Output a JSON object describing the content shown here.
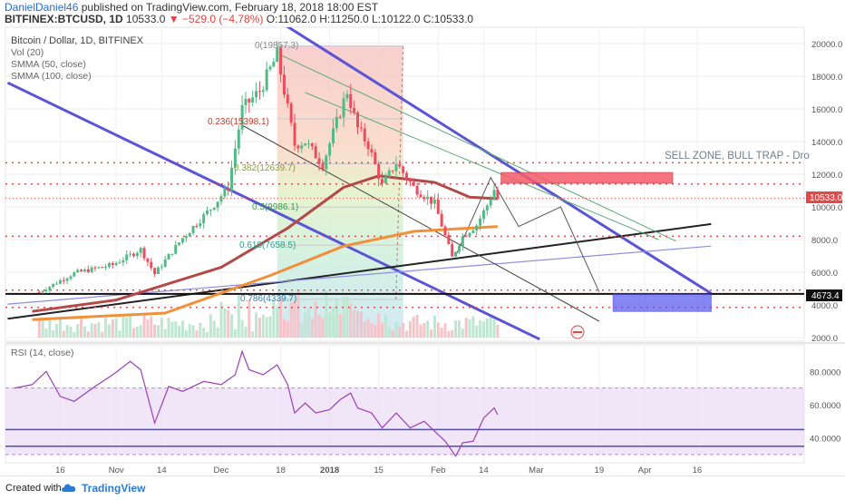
{
  "header": {
    "author": "DanielDaniel46",
    "published": "published on TradingView.com, February 18, 2018 18:00 EST",
    "symbol": "BITFINEX:BTCUSD, 1D",
    "last": "10533.0",
    "change": "▼ −529.0 (−4.78%)",
    "ohlc": "O:11062.0 H:11250.0 L:10122.0 C:10533.0"
  },
  "legend": {
    "title": "Bitcoin / Dollar, 1D, BITFINEX",
    "vol": "Vol (20)",
    "smma50": "SMMA (50, close)",
    "smma100": "SMMA (100, close)"
  },
  "rsi_label": "RSI (14, close)",
  "sell_zone_text": "SELL ZONE, BULL TRAP - Dro",
  "price_tags": {
    "last": "10533.0",
    "support": "4673.4"
  },
  "fib_labels": [
    "0(19857.3)",
    "0.236(15398.1)",
    "0.382(12639.7)",
    "0.5(9986.1)",
    "0.618(7658.5)",
    "0.786(4339.7)"
  ],
  "footer": {
    "created": "Created with",
    "brand": "TradingView"
  },
  "colors": {
    "up": "#53b987",
    "down": "#eb4d5c",
    "smma50": "#b34a4a",
    "smma100": "#f0913a",
    "channel": "#5b55d6",
    "rsi": "#9a3fb8",
    "rsi_band": "#eadcf5",
    "sell_zone": "#f45b69",
    "support": "#5555ee"
  },
  "chart_data": [
    {
      "type": "candlestick",
      "title": "Bitcoin / Dollar, 1D, BITFINEX",
      "y_axis": {
        "ticks": [
          2000,
          4000,
          6000,
          8000,
          10000,
          12000,
          14000,
          16000,
          18000,
          20000
        ],
        "range": [
          2000,
          20800
        ]
      },
      "x_axis": {
        "ticks": [
          "16",
          "Nov",
          "14",
          "Dec",
          "18",
          "2018",
          "15",
          "Feb",
          "14",
          "Mar",
          "19",
          "Apr",
          "16"
        ]
      },
      "close_anchors": [
        [
          "2017-10-10",
          4780
        ],
        [
          "2017-10-20",
          5950
        ],
        [
          "2017-10-31",
          6450
        ],
        [
          "2017-11-08",
          7400
        ],
        [
          "2017-11-12",
          5900
        ],
        [
          "2017-11-20",
          8100
        ],
        [
          "2017-11-28",
          9900
        ],
        [
          "2017-12-03",
          11200
        ],
        [
          "2017-12-07",
          16000
        ],
        [
          "2017-12-12",
          17100
        ],
        [
          "2017-12-17",
          19300
        ],
        [
          "2017-12-22",
          13800
        ],
        [
          "2017-12-25",
          14000
        ],
        [
          "2017-12-30",
          12600
        ],
        [
          "2018-01-06",
          17100
        ],
        [
          "2018-01-09",
          14800
        ],
        [
          "2018-01-12",
          13800
        ],
        [
          "2018-01-16",
          11300
        ],
        [
          "2018-01-20",
          12700
        ],
        [
          "2018-01-25",
          11200
        ],
        [
          "2018-01-31",
          10200
        ],
        [
          "2018-02-05",
          6900
        ],
        [
          "2018-02-08",
          8200
        ],
        [
          "2018-02-12",
          8900
        ],
        [
          "2018-02-15",
          10100
        ],
        [
          "2018-02-17",
          11062
        ],
        [
          "2018-02-18",
          10533
        ]
      ],
      "series": [
        {
          "name": "SMMA (50, close)",
          "points": [
            [
              "2017-10-08",
              3600
            ],
            [
              "2017-11-01",
              4300
            ],
            [
              "2017-12-01",
              6300
            ],
            [
              "2017-12-20",
              8700
            ],
            [
              "2018-01-05",
              11200
            ],
            [
              "2018-01-15",
              11900
            ],
            [
              "2018-01-31",
              11500
            ],
            [
              "2018-02-10",
              10600
            ],
            [
              "2018-02-18",
              10500
            ]
          ]
        },
        {
          "name": "SMMA (100, close)",
          "points": [
            [
              "2017-10-08",
              3100
            ],
            [
              "2017-11-15",
              3500
            ],
            [
              "2017-12-15",
              5800
            ],
            [
              "2018-01-05",
              7600
            ],
            [
              "2018-01-25",
              8500
            ],
            [
              "2018-02-18",
              8800
            ]
          ]
        }
      ],
      "annotations": {
        "fibonacci": [
          [
            0,
            19857.3
          ],
          [
            0.236,
            15398.1
          ],
          [
            0.382,
            12639.7
          ],
          [
            0.5,
            9986.1
          ],
          [
            0.618,
            7658.5
          ],
          [
            0.786,
            4339.7
          ]
        ],
        "sell_zone": {
          "low": 11450,
          "high": 12100,
          "from": "2018-02-19",
          "to": "2018-04-09"
        },
        "support_zone": {
          "low": 3600,
          "high": 4673.4,
          "from": "2018-03-23",
          "to": "2018-04-20"
        },
        "horizontal_levels": [
          12700,
          11400,
          8200,
          4900,
          4673.4,
          3850
        ]
      }
    },
    {
      "type": "line",
      "title": "RSI (14, close)",
      "y_axis": {
        "ticks": [
          40,
          60,
          80
        ],
        "range": [
          25,
          96
        ]
      },
      "band": [
        30,
        70
      ],
      "levels": [
        45,
        35
      ],
      "series": [
        {
          "name": "RSI (14, close)",
          "points": [
            [
              "2017-10-03",
              70
            ],
            [
              "2017-10-08",
              72
            ],
            [
              "2017-10-12",
              80
            ],
            [
              "2017-10-16",
              65
            ],
            [
              "2017-10-20",
              62
            ],
            [
              "2017-10-26",
              71
            ],
            [
              "2017-10-31",
              78
            ],
            [
              "2017-11-05",
              86
            ],
            [
              "2017-11-08",
              81
            ],
            [
              "2017-11-12",
              49
            ],
            [
              "2017-11-16",
              71
            ],
            [
              "2017-11-20",
              68
            ],
            [
              "2017-11-26",
              74
            ],
            [
              "2017-12-01",
              72
            ],
            [
              "2017-12-05",
              78
            ],
            [
              "2017-12-07",
              92
            ],
            [
              "2017-12-09",
              81
            ],
            [
              "2017-12-13",
              78
            ],
            [
              "2017-12-17",
              84
            ],
            [
              "2017-12-20",
              72
            ],
            [
              "2017-12-22",
              55
            ],
            [
              "2017-12-25",
              61
            ],
            [
              "2017-12-28",
              55
            ],
            [
              "2018-01-01",
              57
            ],
            [
              "2018-01-04",
              63
            ],
            [
              "2018-01-07",
              67
            ],
            [
              "2018-01-09",
              58
            ],
            [
              "2018-01-13",
              55
            ],
            [
              "2018-01-16",
              46
            ],
            [
              "2018-01-20",
              55
            ],
            [
              "2018-01-24",
              46
            ],
            [
              "2018-01-28",
              50
            ],
            [
              "2018-02-01",
              42
            ],
            [
              "2018-02-03",
              38
            ],
            [
              "2018-02-06",
              29
            ],
            [
              "2018-02-08",
              37
            ],
            [
              "2018-02-11",
              38
            ],
            [
              "2018-02-14",
              52
            ],
            [
              "2018-02-17",
              58
            ],
            [
              "2018-02-18",
              54
            ]
          ]
        }
      ]
    }
  ]
}
